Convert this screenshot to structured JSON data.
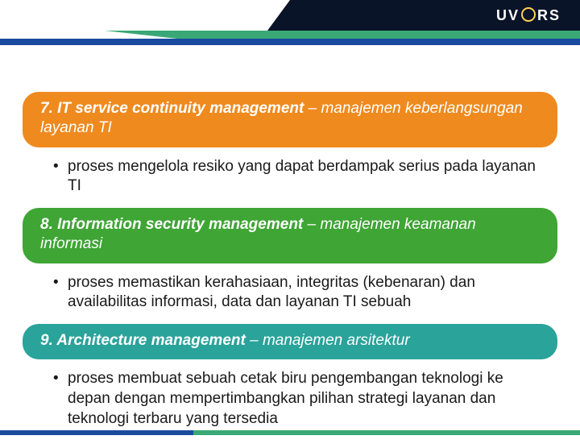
{
  "logo": {
    "prefix": "UV",
    "suffix": "RS"
  },
  "sections": [
    {
      "header_bold": "7. IT service continuity management",
      "header_rest": " – manajemen keberlangsungan layanan TI",
      "header_bg": "#ef8a1f",
      "bullet": "proses mengelola resiko yang dapat berdampak serius pada layanan TI"
    },
    {
      "header_bold": "8. Information security management",
      "header_rest": " – manajemen keamanan informasi",
      "header_bg": "#3fa535",
      "bullet": "proses memastikan kerahasiaan, integritas (kebenaran) dan availabilitas informasi, data dan layanan TI sebuah"
    },
    {
      "header_bold": "9. Architecture management",
      "header_rest": " – manajemen arsitektur",
      "header_bg": "#2aa39a",
      "bullet": "proses membuat sebuah cetak biru pengembangan teknologi ke depan dengan mempertimbangkan pilihan strategi layanan dan teknologi terbaru yang tersedia"
    }
  ],
  "colors": {
    "header_dark": "#0a1428",
    "header_teal": "#3aa876",
    "header_blue": "#1a4a9e",
    "logo_accent": "#ffd24a"
  }
}
